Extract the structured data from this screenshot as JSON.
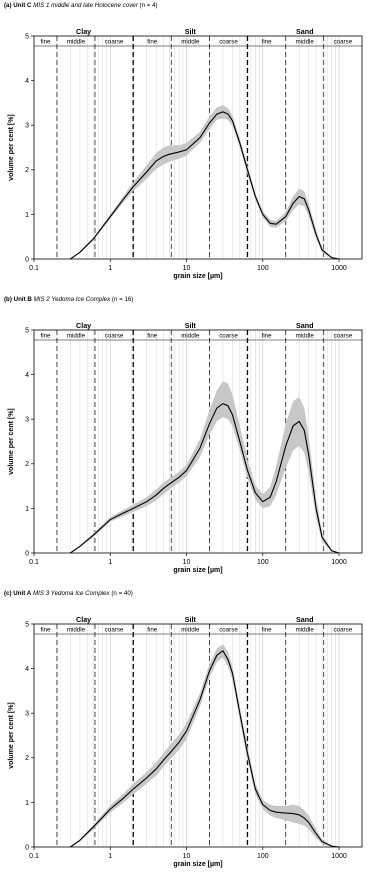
{
  "chart_data": [
    {
      "type": "area",
      "panel_label": "(a) Unit C",
      "subtitle": "MIS 1 middle and late Holocene cover",
      "n_text": "(n = 4)",
      "xlabel": "grain size [µm]",
      "ylabel": "volume per cent [%]",
      "x_scale": "log",
      "xlim": [
        0.1,
        2000
      ],
      "ylim": [
        0,
        5
      ],
      "x_ticks": [
        "0.1",
        "1",
        "10",
        "100",
        "1000"
      ],
      "y_ticks": [
        "0",
        "1",
        "2",
        "3",
        "4",
        "5"
      ],
      "grid": "log minor vertical lines",
      "classes": [
        "Clay",
        "Silt",
        "Sand"
      ],
      "subclasses": [
        "fine",
        "middle",
        "coarse",
        "fine",
        "middle",
        "coarse",
        "fine",
        "middle",
        "coarse"
      ],
      "class_bounds": [
        2,
        63
      ],
      "subclass_bounds": [
        0.2,
        0.63,
        6.3,
        20,
        200,
        630
      ],
      "series": [
        {
          "name": "mean",
          "x": [
            0.3,
            0.4,
            0.6,
            1,
            1.5,
            2,
            3,
            4,
            5,
            6,
            8,
            10,
            15,
            20,
            25,
            30,
            35,
            40,
            50,
            63,
            80,
            100,
            125,
            150,
            200,
            250,
            300,
            350,
            400,
            500,
            600,
            800,
            1000
          ],
          "y": [
            0,
            0.15,
            0.45,
            0.95,
            1.35,
            1.62,
            1.95,
            2.2,
            2.3,
            2.35,
            2.4,
            2.45,
            2.72,
            3.05,
            3.25,
            3.3,
            3.25,
            3.1,
            2.6,
            2.0,
            1.4,
            1.0,
            0.8,
            0.78,
            0.95,
            1.25,
            1.4,
            1.35,
            1.1,
            0.55,
            0.2,
            0.03,
            0
          ]
        },
        {
          "name": "range_upper",
          "y": [
            0,
            0.17,
            0.48,
            1.0,
            1.42,
            1.72,
            2.1,
            2.38,
            2.5,
            2.55,
            2.55,
            2.6,
            2.85,
            3.2,
            3.4,
            3.45,
            3.38,
            3.22,
            2.7,
            2.1,
            1.48,
            1.08,
            0.88,
            0.85,
            1.05,
            1.4,
            1.58,
            1.52,
            1.25,
            0.65,
            0.25,
            0.05,
            0
          ]
        },
        {
          "name": "range_lower",
          "y": [
            0,
            0.13,
            0.42,
            0.9,
            1.28,
            1.52,
            1.8,
            2.02,
            2.12,
            2.18,
            2.25,
            2.32,
            2.6,
            2.92,
            3.12,
            3.15,
            3.12,
            2.98,
            2.5,
            1.9,
            1.32,
            0.93,
            0.72,
            0.7,
            0.85,
            1.1,
            1.22,
            1.18,
            0.95,
            0.45,
            0.15,
            0.02,
            0
          ]
        }
      ]
    },
    {
      "type": "area",
      "panel_label": "(b) Unit B",
      "subtitle": "MIS 2 Yedoma Ice Complex",
      "n_text": "(n = 16)",
      "xlabel": "grain size [µm]",
      "ylabel": "volume per cent [%]",
      "x_scale": "log",
      "xlim": [
        0.1,
        2000
      ],
      "ylim": [
        0,
        5
      ],
      "x_ticks": [
        "0.1",
        "1",
        "10",
        "100",
        "1000"
      ],
      "y_ticks": [
        "0",
        "1",
        "2",
        "3",
        "4",
        "5"
      ],
      "grid": "log minor vertical lines",
      "classes": [
        "Clay",
        "Silt",
        "Sand"
      ],
      "subclasses": [
        "fine",
        "middle",
        "coarse",
        "fine",
        "middle",
        "coarse",
        "fine",
        "middle",
        "coarse"
      ],
      "class_bounds": [
        2,
        63
      ],
      "subclass_bounds": [
        0.2,
        0.63,
        6.3,
        20,
        200,
        630
      ],
      "series": [
        {
          "name": "mean",
          "x": [
            0.3,
            0.4,
            0.6,
            1,
            1.5,
            2,
            3,
            4,
            5,
            6,
            8,
            10,
            15,
            20,
            25,
            30,
            35,
            40,
            50,
            63,
            80,
            100,
            125,
            150,
            200,
            250,
            300,
            350,
            400,
            500,
            600,
            800,
            1000
          ],
          "y": [
            0,
            0.15,
            0.4,
            0.75,
            0.9,
            1.0,
            1.15,
            1.3,
            1.45,
            1.55,
            1.7,
            1.85,
            2.35,
            2.9,
            3.25,
            3.35,
            3.3,
            3.1,
            2.5,
            1.85,
            1.35,
            1.15,
            1.25,
            1.6,
            2.4,
            2.85,
            2.95,
            2.75,
            2.2,
            1.0,
            0.35,
            0.05,
            0
          ]
        },
        {
          "name": "range_upper",
          "y": [
            0,
            0.17,
            0.44,
            0.8,
            0.97,
            1.08,
            1.25,
            1.42,
            1.58,
            1.68,
            1.82,
            1.98,
            2.55,
            3.2,
            3.65,
            3.85,
            3.8,
            3.55,
            2.85,
            2.1,
            1.52,
            1.32,
            1.48,
            1.95,
            2.9,
            3.4,
            3.5,
            3.25,
            2.6,
            1.25,
            0.45,
            0.07,
            0
          ]
        },
        {
          "name": "range_lower",
          "y": [
            0,
            0.13,
            0.36,
            0.7,
            0.83,
            0.92,
            1.05,
            1.18,
            1.32,
            1.42,
            1.58,
            1.72,
            2.15,
            2.65,
            2.95,
            3.05,
            3.0,
            2.85,
            2.3,
            1.68,
            1.2,
            1.0,
            1.05,
            1.3,
            1.9,
            2.3,
            2.4,
            2.25,
            1.8,
            0.8,
            0.25,
            0.03,
            0
          ]
        }
      ]
    },
    {
      "type": "area",
      "panel_label": "(c) Unit A",
      "subtitle": "MIS 3 Yedoma Ice Complex",
      "n_text": "(n = 40)",
      "xlabel": "grain size [µm]",
      "ylabel": "volume per cent [%]",
      "x_scale": "log",
      "xlim": [
        0.1,
        2000
      ],
      "ylim": [
        0,
        5
      ],
      "x_ticks": [
        "0.1",
        "1",
        "10",
        "100",
        "1000"
      ],
      "y_ticks": [
        "0",
        "1",
        "2",
        "3",
        "4",
        "5"
      ],
      "grid": "log minor vertical lines",
      "classes": [
        "Clay",
        "Silt",
        "Sand"
      ],
      "subclasses": [
        "fine",
        "middle",
        "coarse",
        "fine",
        "middle",
        "coarse",
        "fine",
        "middle",
        "coarse"
      ],
      "class_bounds": [
        2,
        63
      ],
      "subclass_bounds": [
        0.2,
        0.63,
        6.3,
        20,
        200,
        630
      ],
      "series": [
        {
          "name": "mean",
          "x": [
            0.3,
            0.4,
            0.6,
            1,
            1.5,
            2,
            3,
            4,
            5,
            6,
            8,
            10,
            15,
            20,
            25,
            30,
            35,
            40,
            50,
            63,
            80,
            100,
            125,
            150,
            200,
            250,
            300,
            350,
            400,
            500,
            600,
            800,
            1000
          ],
          "y": [
            0,
            0.15,
            0.45,
            0.85,
            1.1,
            1.3,
            1.55,
            1.75,
            1.95,
            2.1,
            2.35,
            2.6,
            3.3,
            3.95,
            4.3,
            4.4,
            4.2,
            3.9,
            3.0,
            2.1,
            1.3,
            0.95,
            0.82,
            0.78,
            0.76,
            0.75,
            0.72,
            0.65,
            0.55,
            0.3,
            0.12,
            0.02,
            0
          ]
        },
        {
          "name": "range_upper",
          "y": [
            0,
            0.17,
            0.5,
            0.93,
            1.2,
            1.42,
            1.68,
            1.9,
            2.1,
            2.28,
            2.52,
            2.78,
            3.45,
            4.1,
            4.45,
            4.55,
            4.38,
            4.05,
            3.15,
            2.25,
            1.42,
            1.05,
            0.95,
            0.92,
            0.92,
            0.95,
            0.92,
            0.82,
            0.7,
            0.4,
            0.17,
            0.04,
            0
          ]
        },
        {
          "name": "range_lower",
          "y": [
            0,
            0.13,
            0.4,
            0.77,
            1.0,
            1.18,
            1.42,
            1.6,
            1.8,
            1.95,
            2.18,
            2.42,
            3.15,
            3.8,
            4.15,
            4.25,
            4.05,
            3.75,
            2.85,
            1.95,
            1.18,
            0.85,
            0.7,
            0.65,
            0.6,
            0.55,
            0.52,
            0.48,
            0.4,
            0.2,
            0.07,
            0.01,
            0
          ]
        }
      ]
    }
  ]
}
